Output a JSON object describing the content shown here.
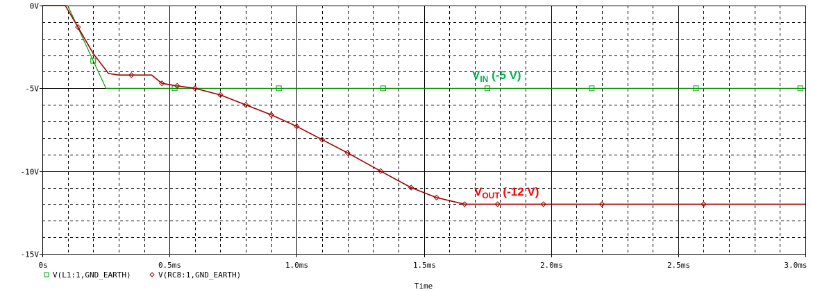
{
  "chart_data": {
    "type": "line",
    "title": "",
    "xlabel": "Time",
    "ylabel": "",
    "xlim": [
      0,
      3.0
    ],
    "ylim": [
      -15,
      0
    ],
    "grid": true,
    "x_tick_labels": [
      "0s",
      "0.5ms",
      "1.0ms",
      "1.5ms",
      "2.0ms",
      "2.5ms",
      "3.0ms"
    ],
    "y_tick_labels": [
      "0V",
      "-5V",
      "-10V",
      "-15V"
    ],
    "legend": [
      "V(L1:1,GND_EARTH)",
      "V(RC8:1,GND_EARTH)"
    ],
    "series": [
      {
        "name": "V(L1:1,GND_EARTH)",
        "color": "#00a000",
        "marker": "square",
        "x_ms": [
          0,
          0.1,
          0.25,
          3.0
        ],
        "y_V": [
          0,
          0,
          -5,
          -5
        ]
      },
      {
        "name": "V(RC8:1,GND_EARTH)",
        "color": "#a00000",
        "marker": "diamond",
        "x_ms": [
          0,
          0.09,
          0.14,
          0.2,
          0.26,
          0.3,
          0.35,
          0.43,
          0.47,
          0.53,
          0.6,
          0.7,
          0.8,
          0.9,
          1.0,
          1.1,
          1.2,
          1.33,
          1.45,
          1.55,
          1.66,
          1.8,
          2.0,
          2.2,
          2.6,
          3.0
        ],
        "y_V": [
          0,
          0,
          -1.3,
          -2.9,
          -4.1,
          -4.2,
          -4.2,
          -4.2,
          -4.7,
          -4.85,
          -5.0,
          -5.4,
          -6.0,
          -6.6,
          -7.3,
          -8.1,
          -8.9,
          -10.0,
          -11.0,
          -11.6,
          -12.0,
          -12.0,
          -12.0,
          -12.0,
          -12.0,
          -12.0
        ]
      }
    ],
    "annotations": [
      {
        "text_main": "V",
        "text_sub": "IN",
        "text_rest": " (-5 V)",
        "color": "#00b050"
      },
      {
        "text_main": "V",
        "text_sub": "OUT",
        "text_rest": " (-12 V)",
        "color": "#ff0000"
      }
    ]
  }
}
